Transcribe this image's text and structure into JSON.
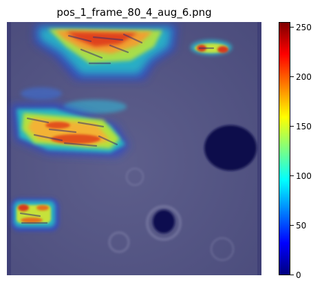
{
  "title": "pos_1_frame_80_4_aug_6.png",
  "colorbar": {
    "colormap": "jet",
    "range": [
      0,
      255
    ],
    "ticks": [
      "0",
      "50",
      "100",
      "150",
      "200",
      "250"
    ]
  },
  "image": {
    "description_kind": "heatmap overlay on grayscale microscopy image",
    "background_color": "#5a5a86"
  }
}
